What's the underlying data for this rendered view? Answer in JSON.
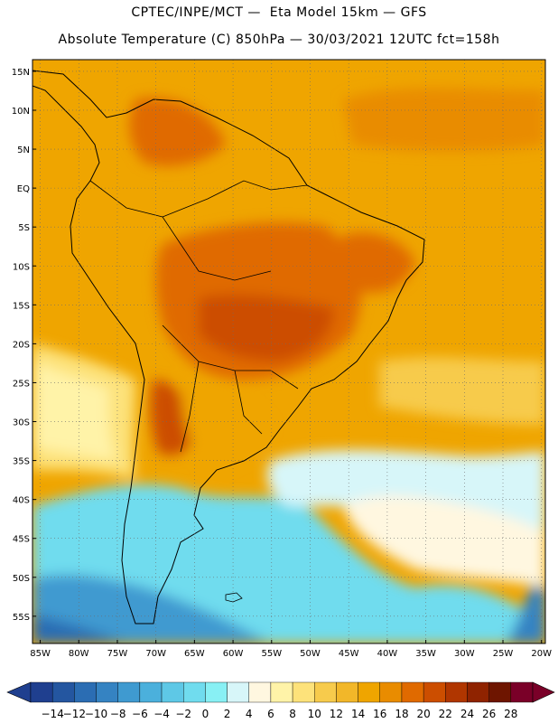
{
  "header": {
    "line1": "CPTEC/INPE/MCT —  Eta Model 15km — GFS",
    "line2": "Absolute Temperature (C) 850hPa — 30/03/2021 12UTC fct=158h"
  },
  "map": {
    "region": "South America",
    "lat_labels": [
      "15N",
      "10N",
      "5N",
      "EQ",
      "5S",
      "10S",
      "15S",
      "20S",
      "25S",
      "30S",
      "35S",
      "40S",
      "45S",
      "50S",
      "55S"
    ],
    "lon_labels": [
      "85W",
      "80W",
      "75W",
      "70W",
      "65W",
      "60W",
      "55W",
      "50W",
      "45W",
      "40W",
      "35W",
      "30W",
      "25W",
      "20W"
    ],
    "grid": "dotted"
  },
  "colorbar": {
    "labels": [
      "-14",
      "-12",
      "-10",
      "-8",
      "-6",
      "-4",
      "-2",
      "0",
      "2",
      "4",
      "6",
      "8",
      "10",
      "12",
      "14",
      "16",
      "18",
      "20",
      "22",
      "24",
      "26",
      "28"
    ],
    "colors": [
      "#1f3f8f",
      "#2456a0",
      "#2b6db3",
      "#3583c2",
      "#3f9ad0",
      "#4bb0dc",
      "#5ec8e6",
      "#70dcee",
      "#88f0f4",
      "#d7f6f9",
      "#fff7e0",
      "#fff3a8",
      "#fde27a",
      "#f7cb4c",
      "#f2b729",
      "#efa500",
      "#e98c00",
      "#e06a00",
      "#cc4e00",
      "#b03600",
      "#8f2300",
      "#6e1500",
      "#7a0028"
    ]
  }
}
